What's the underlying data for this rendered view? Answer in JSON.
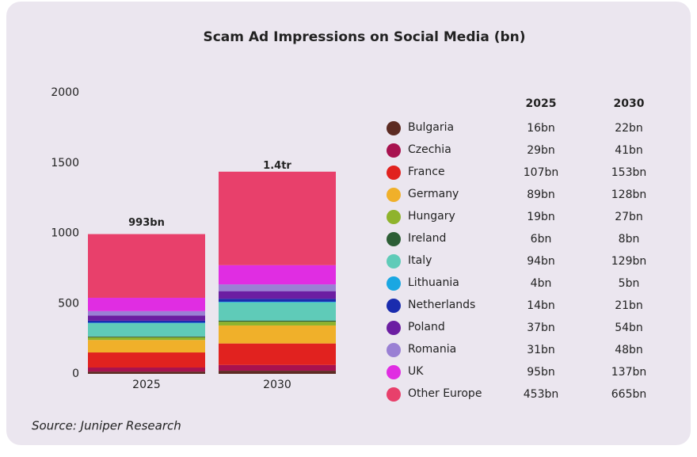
{
  "chart_data": {
    "type": "stacked_bar",
    "title": "Scam Ad Impressions on Social Media (bn)",
    "source": "Source: Juniper Research",
    "categories": [
      "2025",
      "2030"
    ],
    "ylim": [
      0,
      2000
    ],
    "yticks": [
      0,
      500,
      1000,
      1500,
      2000
    ],
    "grid": false,
    "totals": {
      "values": [
        993,
        1400
      ],
      "value_labels": [
        "993bn",
        "1.4tr"
      ]
    },
    "series": [
      {
        "name": "Bulgaria",
        "color": "#5c2b22",
        "values": [
          16,
          22
        ],
        "value_labels": [
          "16bn",
          "22bn"
        ]
      },
      {
        "name": "Czechia",
        "color": "#a8124f",
        "values": [
          29,
          41
        ],
        "value_labels": [
          "29bn",
          "41bn"
        ]
      },
      {
        "name": "France",
        "color": "#e1221f",
        "values": [
          107,
          153
        ],
        "value_labels": [
          "107bn",
          "153bn"
        ]
      },
      {
        "name": "Germany",
        "color": "#f0b02a",
        "values": [
          89,
          128
        ],
        "value_labels": [
          "89bn",
          "128bn"
        ]
      },
      {
        "name": "Hungary",
        "color": "#8fb32c",
        "values": [
          19,
          27
        ],
        "value_labels": [
          "19bn",
          "27bn"
        ]
      },
      {
        "name": "Ireland",
        "color": "#2d5e36",
        "values": [
          6,
          8
        ],
        "value_labels": [
          "6bn",
          "8bn"
        ]
      },
      {
        "name": "Italy",
        "color": "#5fcbb8",
        "values": [
          94,
          129
        ],
        "value_labels": [
          "94bn",
          "129bn"
        ]
      },
      {
        "name": "Lithuania",
        "color": "#1aa7e2",
        "values": [
          4,
          5
        ],
        "value_labels": [
          "4bn",
          "5bn"
        ]
      },
      {
        "name": "Netherlands",
        "color": "#1a2cae",
        "values": [
          14,
          21
        ],
        "value_labels": [
          "14bn",
          "21bn"
        ]
      },
      {
        "name": "Poland",
        "color": "#6c1ea2",
        "values": [
          37,
          54
        ],
        "value_labels": [
          "37bn",
          "54bn"
        ]
      },
      {
        "name": "Romania",
        "color": "#9a80d4",
        "values": [
          31,
          48
        ],
        "value_labels": [
          "31bn",
          "48bn"
        ]
      },
      {
        "name": "UK",
        "color": "#e02de2",
        "values": [
          95,
          137
        ],
        "value_labels": [
          "95bn",
          "137bn"
        ]
      },
      {
        "name": "Other Europe",
        "color": "#e8406b",
        "values": [
          453,
          665
        ],
        "value_labels": [
          "453bn",
          "665bn"
        ]
      }
    ]
  }
}
